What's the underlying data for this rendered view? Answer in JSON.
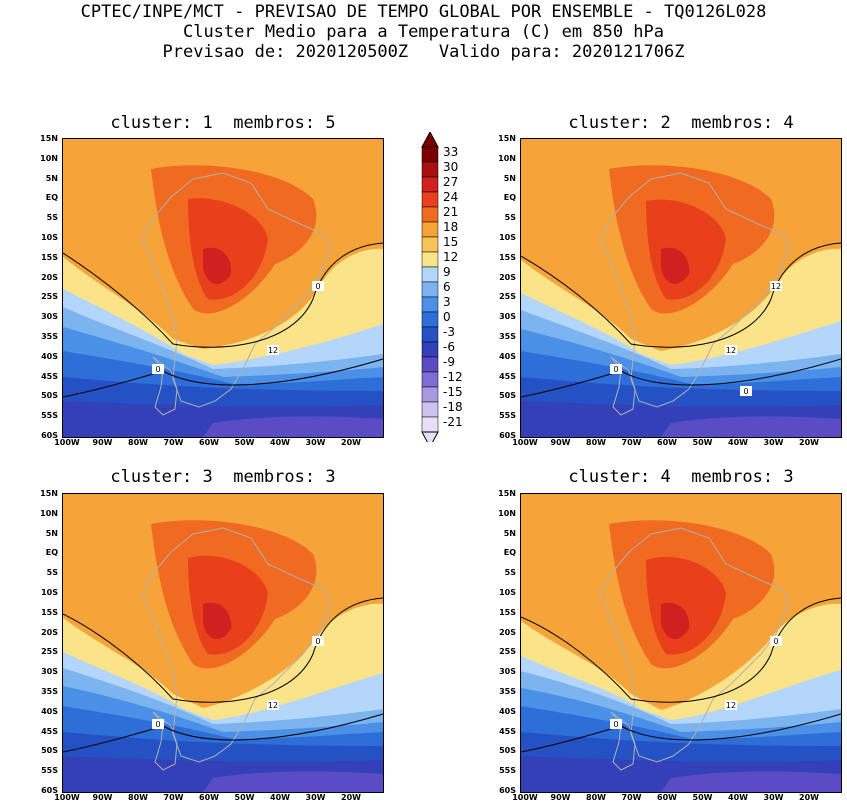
{
  "header": {
    "line1": "CPTEC/INPE/MCT - PREVISAO DE TEMPO GLOBAL POR ENSEMBLE - TQ0126L028",
    "line2": "Cluster Medio para a Temperatura (C) em 850 hPa",
    "line3": "Previsao de: 2020120500Z   Valido para: 2020121706Z"
  },
  "panels": [
    {
      "title": "cluster: 1  membros: 5",
      "contour_labels": [
        "12",
        "0",
        "0"
      ]
    },
    {
      "title": "cluster: 2  membros: 4",
      "contour_labels": [
        "12",
        "12",
        "0",
        "0"
      ]
    },
    {
      "title": "cluster: 3  membros: 3",
      "contour_labels": [
        "12",
        "0",
        "0"
      ]
    },
    {
      "title": "cluster: 4  membros: 3",
      "contour_labels": [
        "12",
        "0",
        "0"
      ]
    }
  ],
  "lat_labels": [
    "15N",
    "10N",
    "5N",
    "EQ",
    "5S",
    "10S",
    "15S",
    "20S",
    "25S",
    "30S",
    "35S",
    "40S",
    "45S",
    "50S",
    "55S",
    "60S"
  ],
  "lon_labels": [
    "100W",
    "90W",
    "80W",
    "70W",
    "60W",
    "50W",
    "40W",
    "30W",
    "20W"
  ],
  "colorbar": {
    "labels": [
      "33",
      "30",
      "27",
      "24",
      "21",
      "18",
      "15",
      "12",
      "9",
      "6",
      "3",
      "0",
      "-3",
      "-6",
      "-9",
      "-12",
      "-15",
      "-18",
      "-21"
    ],
    "colors": [
      "#7a0000",
      "#a81010",
      "#d02020",
      "#e8401a",
      "#f06a22",
      "#f6a43a",
      "#f7c45a",
      "#fbe38a",
      "#b4d6fa",
      "#7cb4f0",
      "#4a90e6",
      "#2e6ed8",
      "#2452c4",
      "#3340b8",
      "#5a4cc4",
      "#7e6ed4",
      "#a898e2",
      "#cdc3ef",
      "#e6dff7"
    ]
  }
}
